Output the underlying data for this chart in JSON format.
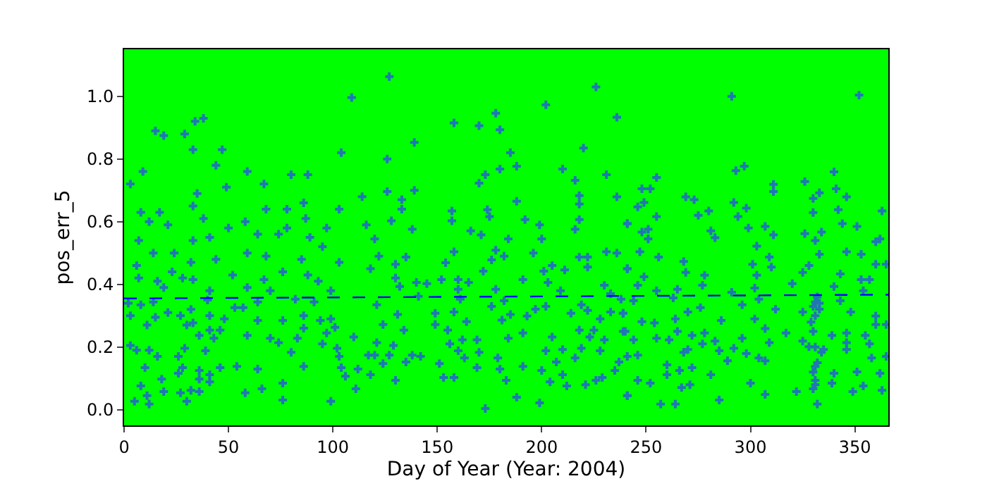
{
  "chart_data": {
    "type": "scatter",
    "xlabel": "Day of Year (Year: 2004)",
    "ylabel": "pos_err_5",
    "xlim": [
      0,
      366
    ],
    "ylim": [
      -0.05,
      1.15
    ],
    "xticks": [
      0,
      50,
      100,
      150,
      200,
      250,
      300,
      350
    ],
    "yticks": [
      {
        "value": 0,
        "label": "0.0"
      },
      {
        "value": 0.2,
        "label": "0.2"
      },
      {
        "value": 0.4,
        "label": "0.4"
      },
      {
        "value": 0.6,
        "label": "0.6"
      },
      {
        "value": 0.8,
        "label": "0.8"
      },
      {
        "value": 1.0,
        "label": "1.0"
      }
    ],
    "grid": false,
    "series": [
      {
        "color": "#1f77b4",
        "marker": "cross",
        "x": [
          109,
          38,
          34,
          15,
          19,
          29,
          33,
          47,
          104,
          9,
          44,
          59,
          3,
          49,
          80,
          88,
          67,
          35,
          114,
          8,
          17,
          33,
          68,
          78,
          86,
          103,
          12,
          38,
          58,
          87,
          21,
          50,
          78,
          97,
          116,
          7,
          33,
          41,
          64,
          74,
          89,
          14,
          24,
          44,
          32,
          6,
          59,
          68,
          85,
          95,
          103,
          23,
          52,
          76,
          88,
          118,
          7,
          28,
          33,
          67,
          93,
          16,
          19,
          59,
          70,
          99,
          41,
          2,
          8,
          14,
          40,
          53,
          57,
          64,
          82,
          91,
          3,
          15,
          21,
          27,
          32,
          41,
          48,
          64,
          76,
          86,
          94,
          99,
          11,
          30,
          33,
          86,
          101,
          41,
          46,
          36,
          97,
          3,
          6,
          12,
          43,
          70,
          74,
          83,
          59,
          110,
          95,
          102,
          39,
          29,
          16,
          26,
          80,
          103,
          117,
          10,
          28,
          36,
          46,
          54,
          64,
          86,
          104,
          112,
          26,
          41,
          18,
          36,
          106,
          118,
          8,
          41,
          76,
          19,
          27,
          32,
          36,
          58,
          66,
          76,
          11,
          5,
          12,
          30,
          99,
          111,
          127,
          226,
          202,
          236,
          178,
          158,
          170,
          180,
          139,
          126,
          220,
          185,
          173,
          170,
          180,
          188,
          210,
          231,
          216,
          126,
          139,
          218,
          236,
          188,
          133,
          133,
          157,
          174,
          218,
          128,
          157,
          175,
          192,
          218,
          199,
          241,
          138,
          166,
          216,
          171,
          200,
          184,
          120,
          158,
          178,
          196,
          122,
          135,
          182,
          218,
          222,
          231,
          236,
          154,
          176,
          205,
          130,
          172,
          201,
          211,
          222,
          241,
          130,
          152,
          160,
          191,
          132,
          140,
          145,
          165,
          203,
          230,
          160,
          178,
          209,
          233,
          141,
          161,
          121,
          182,
          197,
          202,
          219,
          131,
          149,
          158,
          176,
          185,
          193,
          222,
          233,
          239,
          124,
          134,
          149,
          155,
          164,
          181,
          214,
          218,
          225,
          228,
          239,
          191,
          121,
          129,
          156,
          162,
          169,
          184,
          205,
          223,
          230,
          120,
          127,
          138,
          160,
          170,
          202,
          210,
          219,
          228,
          124,
          135,
          142,
          151,
          163,
          179,
          216,
          237,
          169,
          191,
          200,
          207,
          180,
          235,
          153,
          158,
          183,
          210,
          229,
          130,
          204,
          212,
          221,
          226,
          188,
          199,
          173,
          241,
          291,
          352,
          293,
          297,
          255,
          340,
          248,
          252,
          341,
          326,
          333,
          311,
          311,
          246,
          249,
          269,
          273,
          292,
          298,
          330,
          346,
          241,
          255,
          275,
          280,
          294,
          330,
          342,
          363,
          248,
          251,
          281,
          299,
          307,
          326,
          334,
          344,
          351,
          251,
          283,
          311,
          331,
          362,
          247,
          256,
          303,
          333,
          346,
          360,
          268,
          301,
          309,
          328,
          353,
          360,
          365,
          241,
          249,
          269,
          278,
          303,
          310,
          325,
          343,
          357,
          246,
          277,
          302,
          320,
          340,
          353,
          255,
          265,
          291,
          354,
          238,
          244,
          263,
          304,
          331,
          343,
          239,
          248,
          270,
          276,
          296,
          312,
          325,
          333,
          348,
          360,
          264,
          286,
          302,
          360,
          365,
          240,
          254,
          265,
          278,
          307,
          317,
          339,
          346,
          355,
          244,
          255,
          272,
          283,
          296,
          309,
          325,
          346,
          357,
          261,
          277,
          292,
          328,
          335,
          270,
          285,
          346,
          241,
          246,
          268,
          298,
          304,
          334,
          358,
          365,
          289,
          307,
          260,
          331,
          272,
          266,
          281,
          340,
          351,
          260,
          246,
          252,
          271,
          300,
          331,
          339,
          354,
          362,
          267,
          330,
          322,
          241,
          307,
          349,
          363,
          257,
          264,
          285,
          332,
          330,
          331,
          332,
          329,
          333,
          330,
          331,
          332,
          330,
          331
        ],
        "values": [
          0.996,
          0.93,
          0.92,
          0.89,
          0.875,
          0.88,
          0.83,
          0.83,
          0.82,
          0.76,
          0.78,
          0.76,
          0.72,
          0.71,
          0.75,
          0.75,
          0.72,
          0.69,
          0.68,
          0.63,
          0.63,
          0.65,
          0.64,
          0.64,
          0.66,
          0.64,
          0.6,
          0.61,
          0.6,
          0.61,
          0.59,
          0.58,
          0.58,
          0.58,
          0.59,
          0.54,
          0.54,
          0.55,
          0.56,
          0.56,
          0.55,
          0.5,
          0.5,
          0.48,
          0.47,
          0.46,
          0.5,
          0.49,
          0.48,
          0.52,
          0.47,
          0.44,
          0.43,
          0.44,
          0.43,
          0.45,
          0.42,
          0.42,
          0.415,
          0.415,
          0.41,
          0.41,
          0.39,
          0.39,
          0.38,
          0.38,
          0.38,
          0.34,
          0.335,
          0.344,
          0.35,
          0.326,
          0.326,
          0.344,
          0.353,
          0.344,
          0.3,
          0.295,
          0.31,
          0.3,
          0.32,
          0.3,
          0.29,
          0.285,
          0.285,
          0.3,
          0.285,
          0.29,
          0.27,
          0.27,
          0.277,
          0.26,
          0.263,
          0.254,
          0.254,
          0.237,
          0.245,
          0.205,
          0.19,
          0.19,
          0.228,
          0.228,
          0.214,
          0.228,
          0.237,
          0.232,
          0.21,
          0.196,
          0.188,
          0.196,
          0.17,
          0.17,
          0.183,
          0.17,
          0.174,
          0.134,
          0.134,
          0.125,
          0.134,
          0.138,
          0.13,
          0.138,
          0.134,
          0.13,
          0.116,
          0.112,
          0.098,
          0.098,
          0.107,
          0.112,
          0.076,
          0.089,
          0.085,
          0.058,
          0.054,
          0.062,
          0.058,
          0.054,
          0.067,
          0.031,
          0.045,
          0.027,
          0.018,
          0.027,
          0.027,
          0.067,
          1.063,
          1.03,
          0.973,
          0.933,
          0.946,
          0.915,
          0.906,
          0.893,
          0.853,
          0.8,
          0.835,
          0.82,
          0.75,
          0.723,
          0.768,
          0.777,
          0.768,
          0.75,
          0.732,
          0.696,
          0.7,
          0.683,
          0.679,
          0.665,
          0.67,
          0.64,
          0.634,
          0.638,
          0.656,
          0.603,
          0.603,
          0.616,
          0.607,
          0.607,
          0.59,
          0.594,
          0.576,
          0.571,
          0.576,
          0.558,
          0.545,
          0.545,
          0.545,
          0.504,
          0.509,
          0.5,
          0.49,
          0.487,
          0.49,
          0.487,
          0.487,
          0.504,
          0.5,
          0.469,
          0.478,
          0.46,
          0.464,
          0.442,
          0.442,
          0.446,
          0.455,
          0.45,
          0.42,
          0.415,
          0.415,
          0.415,
          0.393,
          0.406,
          0.402,
          0.406,
          0.406,
          0.397,
          0.384,
          0.384,
          0.38,
          0.37,
          0.362,
          0.353,
          0.335,
          0.348,
          0.321,
          0.33,
          0.335,
          0.304,
          0.308,
          0.312,
          0.33,
          0.304,
          0.299,
          0.317,
          0.312,
          0.308,
          0.272,
          0.254,
          0.272,
          0.254,
          0.281,
          0.286,
          0.308,
          0.254,
          0.254,
          0.29,
          0.25,
          0.245,
          0.214,
          0.205,
          0.21,
          0.223,
          0.223,
          0.228,
          0.232,
          0.232,
          0.223,
          0.174,
          0.174,
          0.174,
          0.188,
          0.183,
          0.188,
          0.192,
          0.196,
          0.188,
          0.147,
          0.152,
          0.17,
          0.147,
          0.165,
          0.165,
          0.165,
          0.152,
          0.134,
          0.138,
          0.125,
          0.152,
          0.13,
          0.125,
          0.103,
          0.103,
          0.094,
          0.112,
          0.103,
          0.094,
          0.089,
          0.076,
          0.08,
          0.094,
          0.04,
          0.022,
          0.004,
          0.045,
          1.0,
          1.004,
          0.763,
          0.777,
          0.741,
          0.759,
          0.705,
          0.705,
          0.705,
          0.728,
          0.692,
          0.719,
          0.696,
          0.647,
          0.661,
          0.679,
          0.67,
          0.661,
          0.643,
          0.674,
          0.679,
          0.594,
          0.616,
          0.62,
          0.634,
          0.616,
          0.629,
          0.638,
          0.634,
          0.567,
          0.576,
          0.571,
          0.58,
          0.585,
          0.562,
          0.567,
          0.594,
          0.585,
          0.545,
          0.549,
          0.558,
          0.54,
          0.545,
          0.504,
          0.487,
          0.522,
          0.496,
          0.504,
          0.536,
          0.473,
          0.464,
          0.487,
          0.46,
          0.496,
          0.464,
          0.464,
          0.45,
          0.424,
          0.438,
          0.429,
          0.429,
          0.455,
          0.438,
          0.433,
          0.415,
          0.397,
          0.397,
          0.388,
          0.402,
          0.393,
          0.415,
          0.38,
          0.384,
          0.375,
          0.38,
          0.353,
          0.348,
          0.357,
          0.353,
          0.344,
          0.348,
          0.308,
          0.281,
          0.312,
          0.326,
          0.335,
          0.321,
          0.312,
          0.321,
          0.312,
          0.299,
          0.29,
          0.285,
          0.29,
          0.272,
          0.272,
          0.25,
          0.277,
          0.25,
          0.245,
          0.259,
          0.245,
          0.237,
          0.245,
          0.237,
          0.223,
          0.228,
          0.237,
          0.219,
          0.228,
          0.214,
          0.219,
          0.214,
          0.21,
          0.223,
          0.21,
          0.196,
          0.201,
          0.192,
          0.192,
          0.188,
          0.192,
          0.17,
          0.174,
          0.183,
          0.179,
          0.165,
          0.183,
          0.165,
          0.17,
          0.156,
          0.156,
          0.143,
          0.138,
          0.134,
          0.125,
          0.112,
          0.116,
          0.121,
          0.112,
          0.094,
          0.085,
          0.08,
          0.085,
          0.094,
          0.085,
          0.076,
          0.116,
          0.071,
          0.067,
          0.058,
          0.045,
          0.049,
          0.058,
          0.062,
          0.018,
          0.018,
          0.031,
          0.018,
          0.33,
          0.3,
          0.36,
          0.28,
          0.34,
          0.25,
          0.2,
          0.15,
          0.12,
          0.08
        ]
      },
      {
        "type": "line",
        "color": "#0000ff",
        "marker": "none",
        "line_style": "dashed",
        "x": [
          0,
          366
        ],
        "values": [
          0.355,
          0.367
        ]
      }
    ]
  }
}
